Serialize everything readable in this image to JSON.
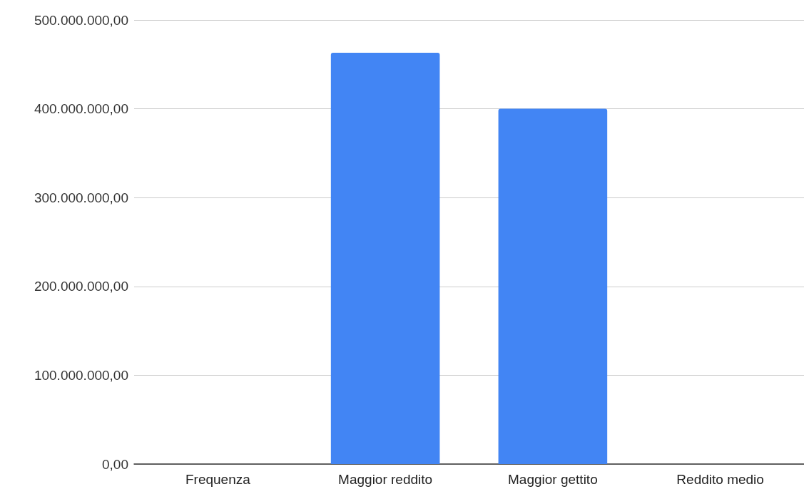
{
  "chart_data": {
    "type": "bar",
    "categories": [
      "Frequenza",
      "Maggior reddito",
      "Maggior gettito",
      "Reddito medio"
    ],
    "values": [
      0,
      463000000,
      400000000,
      0
    ],
    "color": "#4285f4",
    "ylim": [
      0,
      500000000
    ],
    "yticks": [
      {
        "value": 0,
        "label": "0,00"
      },
      {
        "value": 100000000,
        "label": "100.000.000,00"
      },
      {
        "value": 200000000,
        "label": "200.000.000,00"
      },
      {
        "value": 300000000,
        "label": "300.000.000,00"
      },
      {
        "value": 400000000,
        "label": "400.000.000,00"
      },
      {
        "value": 500000000,
        "label": "500.000.000,00"
      }
    ],
    "grid": "y"
  }
}
